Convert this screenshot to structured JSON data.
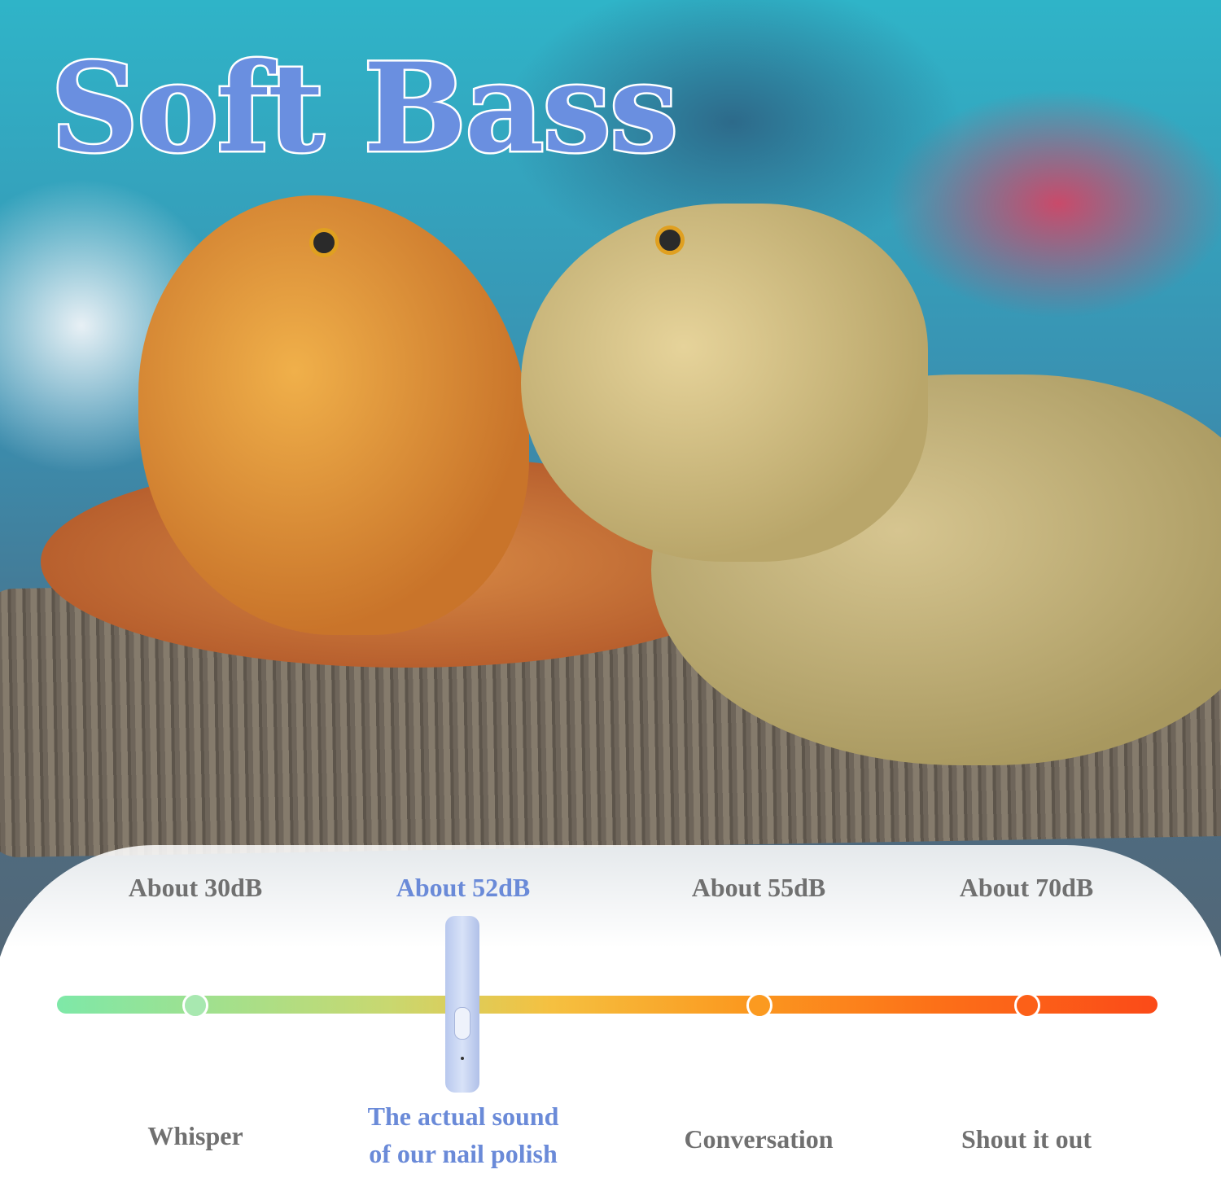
{
  "title": "Soft Bass",
  "scale": {
    "levels": [
      {
        "db": "About 30dB",
        "label": "Whisper",
        "color": "#a8e8b0",
        "highlight": false
      },
      {
        "db": "About 52dB",
        "label_line1": "The actual sound",
        "label_line2": "of our nail polish",
        "highlight": true
      },
      {
        "db": "About 55dB",
        "label": "Conversation",
        "color": "#fb9a20",
        "highlight": false
      },
      {
        "db": "About 70dB",
        "label": "Shout it out",
        "color": "#fc6018",
        "highlight": false
      }
    ],
    "highlight_color": "#6a8ad8",
    "text_color": "#707070"
  },
  "image": {
    "subject_icon": "bearded-dragon-photo",
    "product_icon": "nail-grinder-device"
  }
}
